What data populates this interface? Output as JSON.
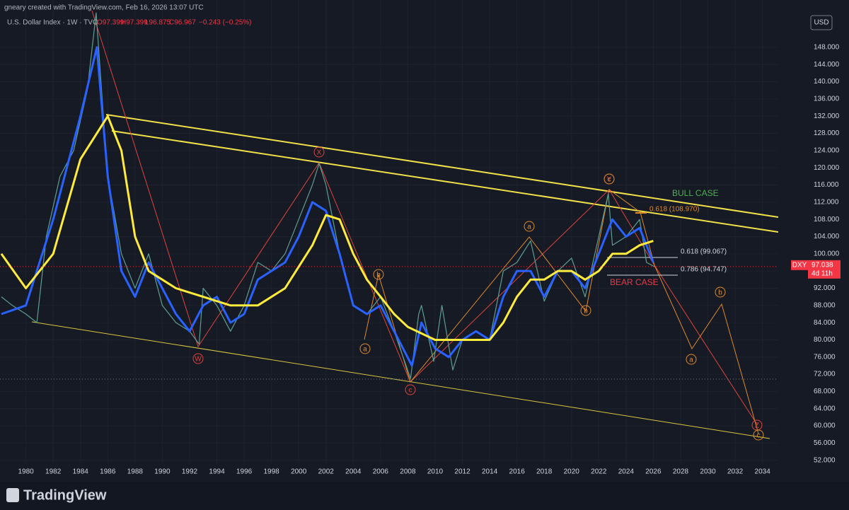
{
  "header": {
    "credit": "gneary created with TradingView.com, Feb 16, 2026 13:07 UTC",
    "symbol": "U.S. Dollar Index · 1W · TVC",
    "open": "O97.399",
    "high": "H97.399",
    "low": "L96.875",
    "close": "C96.967",
    "change": "−0.243 (−0.25%)"
  },
  "chart_data": {
    "type": "line",
    "series": [
      {
        "name": "DXY",
        "color": "#5e9e92",
        "x": [
          1978.2,
          1979,
          1980,
          1980.8,
          1981.5,
          1982.5,
          1983.5,
          1984.5,
          1985.15,
          1985.5,
          1986,
          1987,
          1988,
          1989,
          1990,
          1991,
          1992,
          1992.7,
          1993,
          1994,
          1995,
          1996,
          1997,
          1998,
          1999,
          2000,
          2001,
          2001.5,
          2002,
          2003,
          2004,
          2005,
          2006,
          2007,
          2008.2,
          2008.8,
          2009,
          2009.9,
          2010.5,
          2011.3,
          2012,
          2013,
          2014,
          2015,
          2016,
          2017,
          2018,
          2019,
          2020,
          2021,
          2022,
          2022.7,
          2023,
          2024,
          2025,
          2025.5,
          2026.1
        ],
        "values": [
          90,
          88,
          86,
          84,
          104,
          118,
          124,
          138,
          156,
          140,
          118,
          100,
          92,
          100,
          88,
          84,
          82,
          79,
          92,
          88,
          82,
          88,
          98,
          96,
          100,
          108,
          116,
          121,
          116,
          100,
          88,
          86,
          90,
          82,
          71,
          86,
          88,
          75,
          88,
          73,
          80,
          82,
          80,
          96,
          98,
          103,
          89,
          96,
          99,
          90,
          104,
          114,
          102,
          104,
          108,
          98,
          97
        ]
      },
      {
        "color": "#2962ff",
        "x": [
          1978.2,
          1980,
          1982,
          1984,
          1985.2,
          1986,
          1987,
          1988,
          1989,
          1990,
          1991,
          1992,
          1993,
          1994,
          1995,
          1996,
          1997,
          1998,
          1999,
          2000,
          2001,
          2002,
          2003,
          2004,
          2005,
          2006,
          2007,
          2008.3,
          2009,
          2010,
          2011,
          2012,
          2013,
          2014,
          2015,
          2016,
          2017,
          2018,
          2019,
          2020,
          2021,
          2022,
          2023,
          2024,
          2025,
          2026
        ],
        "values": [
          86,
          88,
          108,
          132,
          148,
          118,
          96,
          90,
          98,
          92,
          86,
          82,
          88,
          90,
          84,
          86,
          94,
          96,
          98,
          104,
          112,
          110,
          100,
          88,
          86,
          88,
          82,
          74,
          84,
          78,
          76,
          80,
          82,
          80,
          90,
          96,
          96,
          90,
          96,
          96,
          92,
          100,
          108,
          104,
          106,
          98
        ]
      },
      {
        "color": "#ffeb3b",
        "x": [
          1978.2,
          1980,
          1982,
          1984,
          1986,
          1987,
          1988,
          1989,
          1990,
          1991,
          1993,
          1995,
          1997,
          1999,
          2001,
          2002,
          2003,
          2004,
          2005,
          2006,
          2007,
          2008,
          2010,
          2012,
          2014,
          2015,
          2016,
          2017,
          2018,
          2019,
          2020,
          2021,
          2022,
          2023,
          2024,
          2025,
          2026
        ],
        "values": [
          100,
          92,
          100,
          122,
          132,
          124,
          104,
          96,
          94,
          92,
          90,
          88,
          88,
          92,
          102,
          109,
          108,
          100,
          94,
          90,
          86,
          83,
          80,
          80,
          80,
          84,
          90,
          94,
          94,
          96,
          96,
          94,
          96,
          100,
          100,
          102,
          103
        ]
      }
    ],
    "xlim": [
      1978.1,
      2034.9
    ],
    "xticks": [
      1980,
      1982,
      1984,
      1986,
      1988,
      1990,
      1992,
      1994,
      1996,
      1998,
      2000,
      2002,
      2004,
      2006,
      2008,
      2010,
      2012,
      2014,
      2016,
      2018,
      2020,
      2022,
      2024,
      2026,
      2028,
      2030,
      2032,
      2034
    ],
    "ylim": [
      51.3,
      159
    ],
    "yticks": [
      {
        "value": 52,
        "label": "52.000"
      },
      {
        "value": 56,
        "label": "56.000"
      },
      {
        "value": 60,
        "label": "60.000"
      },
      {
        "value": 64,
        "label": "64.000"
      },
      {
        "value": 68,
        "label": "68.000"
      },
      {
        "value": 72,
        "label": "72.000"
      },
      {
        "value": 76,
        "label": "76.000"
      },
      {
        "value": 80,
        "label": "80.000"
      },
      {
        "value": 84,
        "label": "84.000"
      },
      {
        "value": 88,
        "label": "88.000"
      },
      {
        "value": 92,
        "label": "92.000"
      },
      {
        "value": 96,
        "label": "96.000"
      },
      {
        "value": 100,
        "label": "100.000"
      },
      {
        "value": 104,
        "label": "104.000"
      },
      {
        "value": 108,
        "label": "108.000"
      },
      {
        "value": 112,
        "label": "112.000"
      },
      {
        "value": 116,
        "label": "116.000"
      },
      {
        "value": 120,
        "label": "120.000"
      },
      {
        "value": 124,
        "label": "124.000"
      },
      {
        "value": 128,
        "label": "128.000"
      },
      {
        "value": 132,
        "label": "132.000"
      },
      {
        "value": 136,
        "label": "136.000"
      },
      {
        "value": 140,
        "label": "140.000"
      },
      {
        "value": 144,
        "label": "144.000"
      },
      {
        "value": 148,
        "label": "148.000"
      }
    ],
    "grid": true,
    "currency": "USD",
    "last_price": {
      "symbol": "DXY",
      "value": 97.038,
      "countdown": "4d 11h"
    },
    "annotations": [
      "BULL CASE",
      "BEAR CASE",
      "0.618 (108.970)",
      "0.618 (99.067)",
      "0.786 (94.747)",
      "W",
      "X",
      "Y",
      "Z",
      "c",
      "a",
      "b",
      "a",
      "b",
      "c",
      "a",
      "b",
      "c"
    ]
  },
  "branding": "TradingView"
}
